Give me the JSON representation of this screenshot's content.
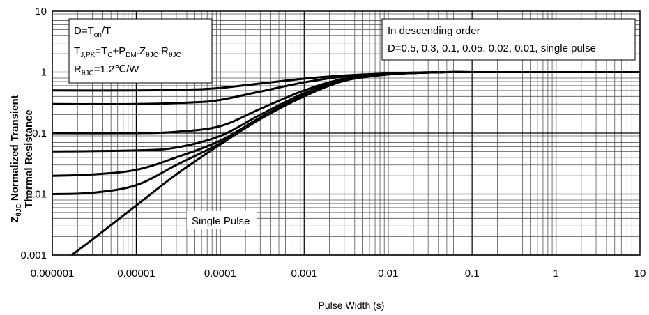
{
  "chart_data": {
    "type": "line",
    "title": "",
    "xlabel": "Pulse Width (s)",
    "ylabel_prefix": "Z",
    "ylabel_sub": "θJC",
    "ylabel_rest": " Normalized Transient",
    "ylabel_line2": "Thermal Resistance",
    "x_scale": "log",
    "y_scale": "log",
    "xlim": [
      1e-06,
      10
    ],
    "ylim": [
      0.001,
      10
    ],
    "x_ticks": [
      1e-06,
      1e-05,
      0.0001,
      0.001,
      0.01,
      0.1,
      1,
      10
    ],
    "x_tick_labels": [
      "0.000001",
      "0.00001",
      "0.0001",
      "0.001",
      "0.01",
      "0.1",
      "1",
      "10"
    ],
    "y_ticks": [
      0.001,
      0.01,
      0.1,
      1,
      10
    ],
    "y_tick_labels": [
      "0.001",
      "0.01",
      "0.1",
      "1",
      "10"
    ],
    "grid": true,
    "line_color": "#000000",
    "series": [
      {
        "duty": 0.5,
        "x": [
          1e-06,
          1e-05,
          5e-05,
          0.0001,
          0.0003,
          0.001,
          0.003,
          0.01,
          0.02,
          0.05,
          0.1,
          1,
          10
        ],
        "y": [
          0.5,
          0.5,
          0.52,
          0.55,
          0.65,
          0.78,
          0.88,
          0.95,
          0.98,
          1.0,
          1.0,
          1.0,
          1.0
        ]
      },
      {
        "duty": 0.3,
        "x": [
          1e-06,
          1e-05,
          5e-05,
          0.0001,
          0.0003,
          0.001,
          0.003,
          0.01,
          0.02,
          0.05,
          0.1,
          1,
          10
        ],
        "y": [
          0.3,
          0.3,
          0.32,
          0.35,
          0.48,
          0.68,
          0.85,
          0.95,
          0.98,
          1.0,
          1.0,
          1.0,
          1.0
        ]
      },
      {
        "duty": 0.1,
        "x": [
          1e-06,
          1e-05,
          3e-05,
          0.0001,
          0.0003,
          0.001,
          0.003,
          0.01,
          0.02,
          0.05,
          0.1,
          1,
          10
        ],
        "y": [
          0.1,
          0.1,
          0.105,
          0.13,
          0.25,
          0.5,
          0.78,
          0.93,
          0.97,
          1.0,
          1.0,
          1.0,
          1.0
        ]
      },
      {
        "duty": 0.05,
        "x": [
          1e-06,
          1e-05,
          3e-05,
          0.0001,
          0.0003,
          0.001,
          0.003,
          0.01,
          0.02,
          0.05,
          0.1,
          1,
          10
        ],
        "y": [
          0.05,
          0.052,
          0.058,
          0.09,
          0.2,
          0.45,
          0.76,
          0.92,
          0.97,
          1.0,
          1.0,
          1.0,
          1.0
        ]
      },
      {
        "duty": 0.02,
        "x": [
          1e-06,
          3e-06,
          1e-05,
          3e-05,
          0.0001,
          0.0003,
          0.001,
          0.003,
          0.01,
          0.02,
          0.05,
          0.1,
          1,
          10
        ],
        "y": [
          0.02,
          0.021,
          0.025,
          0.04,
          0.075,
          0.18,
          0.42,
          0.74,
          0.92,
          0.97,
          1.0,
          1.0,
          1.0,
          1.0
        ]
      },
      {
        "duty": 0.01,
        "x": [
          1e-06,
          3e-06,
          1e-05,
          3e-05,
          0.0001,
          0.0003,
          0.001,
          0.003,
          0.01,
          0.02,
          0.05,
          0.1,
          1,
          10
        ],
        "y": [
          0.01,
          0.0105,
          0.014,
          0.03,
          0.068,
          0.17,
          0.41,
          0.73,
          0.92,
          0.97,
          1.0,
          1.0,
          1.0,
          1.0
        ]
      },
      {
        "duty": "single pulse",
        "x": [
          1.7e-06,
          3e-06,
          1e-05,
          3e-05,
          0.0001,
          0.0003,
          0.001,
          0.003,
          0.01,
          0.02,
          0.05,
          0.1,
          1,
          10
        ],
        "y": [
          0.001,
          0.0018,
          0.0065,
          0.021,
          0.065,
          0.17,
          0.4,
          0.72,
          0.92,
          0.97,
          1.0,
          1.0,
          1.0,
          1.0
        ]
      }
    ],
    "annotations": {
      "box1_line1_main": "D=T",
      "box1_line1_sub": "on",
      "box1_line1_end": "/T",
      "box1_line2_a": "T",
      "box1_line2_a_sub": "J,PK",
      "box1_line2_b": "=T",
      "box1_line2_b_sub": "C",
      "box1_line2_c": "+P",
      "box1_line2_c_sub": "DM",
      "box1_line2_d": ".Z",
      "box1_line2_d_sub": "θJC",
      "box1_line2_e": ".R",
      "box1_line2_e_sub": "θJC",
      "box1_line3_a": "R",
      "box1_line3_a_sub": "θJC",
      "box1_line3_b": "=1.2℃/W",
      "box2_line1": "In descending order",
      "box2_line2": "D=0.5, 0.3, 0.1, 0.05, 0.02, 0.01, single pulse",
      "single_pulse_label": "Single Pulse"
    }
  }
}
